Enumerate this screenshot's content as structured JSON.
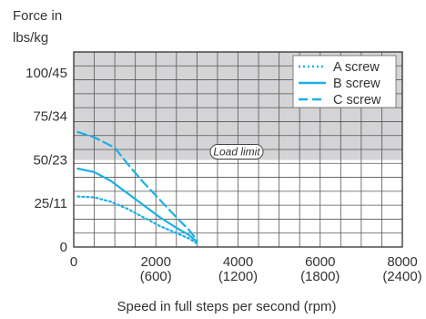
{
  "chart_data": {
    "type": "line",
    "ylabel_lines": [
      "Force in",
      "lbs/kg"
    ],
    "xlabel": "Speed in full steps per second (rpm)",
    "xlim": [
      0,
      8000
    ],
    "ylim": [
      0,
      112
    ],
    "x_ticks": [
      {
        "value": 0,
        "label": "0",
        "sub": ""
      },
      {
        "value": 2000,
        "label": "2000",
        "sub": "(600)"
      },
      {
        "value": 4000,
        "label": "4000",
        "sub": "(1200)"
      },
      {
        "value": 6000,
        "label": "6000",
        "sub": "(1800)"
      },
      {
        "value": 8000,
        "label": "8000",
        "sub": "(2400)"
      }
    ],
    "y_ticks": [
      {
        "value": 0,
        "label": "0"
      },
      {
        "value": 25,
        "label": "25/11"
      },
      {
        "value": 50,
        "label": "50/23"
      },
      {
        "value": 75,
        "label": "75/34"
      },
      {
        "value": 100,
        "label": "100/45"
      }
    ],
    "grid": true,
    "load_limit": {
      "y": 50,
      "label": "Load limit",
      "shade_color": "#d4d4d6"
    },
    "legend_position": "top-right",
    "series": [
      {
        "name": "A screw",
        "style": "dotted",
        "color": "#1ab0e6",
        "x": [
          100,
          500,
          900,
          1300,
          1700,
          2100,
          2500,
          2800,
          3000
        ],
        "y": [
          29,
          28.5,
          26,
          22,
          17,
          12,
          8,
          5,
          2
        ]
      },
      {
        "name": "B screw",
        "style": "solid",
        "color": "#1ab0e6",
        "x": [
          100,
          500,
          900,
          1300,
          1700,
          2100,
          2500,
          2800,
          3000
        ],
        "y": [
          45,
          43,
          38,
          31,
          24,
          17,
          11,
          7,
          3
        ]
      },
      {
        "name": "C screw",
        "style": "dashed",
        "color": "#1ab0e6",
        "x": [
          100,
          500,
          1000,
          1300,
          1700,
          2100,
          2500,
          2800,
          3000
        ],
        "y": [
          66,
          63,
          57,
          48,
          37,
          27,
          17,
          10,
          4
        ]
      }
    ]
  }
}
